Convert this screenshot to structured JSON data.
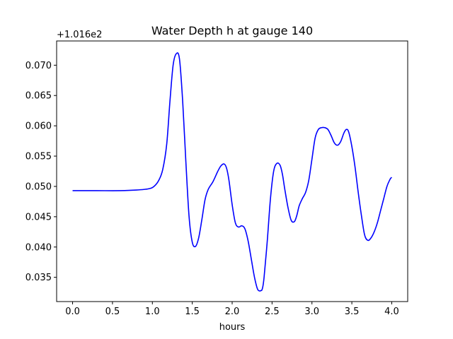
{
  "chart_data": {
    "type": "line",
    "title": "Water Depth h at gauge 140",
    "xlabel": "hours",
    "ylabel": "",
    "y_offset_label": "+1.016e2",
    "xlim": [
      -0.2,
      4.2
    ],
    "ylim": [
      0.031,
      0.074
    ],
    "x_ticks": [
      0.0,
      0.5,
      1.0,
      1.5,
      2.0,
      2.5,
      3.0,
      3.5,
      4.0
    ],
    "x_tick_labels": [
      "0.0",
      "0.5",
      "1.0",
      "1.5",
      "2.0",
      "2.5",
      "3.0",
      "3.5",
      "4.0"
    ],
    "y_ticks": [
      0.035,
      0.04,
      0.045,
      0.05,
      0.055,
      0.06,
      0.065,
      0.07
    ],
    "y_tick_labels": [
      "0.035",
      "0.040",
      "0.045",
      "0.050",
      "0.055",
      "0.060",
      "0.065",
      "0.070"
    ],
    "grid": false,
    "series": [
      {
        "color": "#0000ff",
        "x": [
          0.0,
          0.3,
          0.6,
          0.8,
          0.95,
          1.02,
          1.08,
          1.13,
          1.18,
          1.22,
          1.26,
          1.3,
          1.34,
          1.38,
          1.42,
          1.46,
          1.5,
          1.54,
          1.58,
          1.62,
          1.66,
          1.7,
          1.76,
          1.82,
          1.86,
          1.9,
          1.93,
          1.96,
          2.0,
          2.04,
          2.08,
          2.12,
          2.16,
          2.2,
          2.24,
          2.28,
          2.32,
          2.36,
          2.38,
          2.4,
          2.44,
          2.48,
          2.52,
          2.56,
          2.6,
          2.63,
          2.66,
          2.7,
          2.74,
          2.78,
          2.81,
          2.84,
          2.88,
          2.92,
          2.96,
          3.0,
          3.04,
          3.08,
          3.12,
          3.16,
          3.2,
          3.24,
          3.28,
          3.32,
          3.36,
          3.4,
          3.43,
          3.46,
          3.5,
          3.54,
          3.58,
          3.62,
          3.66,
          3.7,
          3.74,
          3.78,
          3.82,
          3.86,
          3.9,
          3.94,
          3.98,
          4.0
        ],
        "y": [
          0.0493,
          0.0493,
          0.0493,
          0.0494,
          0.0496,
          0.05,
          0.051,
          0.0528,
          0.057,
          0.064,
          0.07,
          0.0719,
          0.071,
          0.064,
          0.054,
          0.045,
          0.0408,
          0.0401,
          0.0415,
          0.0445,
          0.0478,
          0.0495,
          0.0508,
          0.0525,
          0.0534,
          0.0537,
          0.053,
          0.051,
          0.047,
          0.044,
          0.0433,
          0.0435,
          0.043,
          0.041,
          0.038,
          0.035,
          0.033,
          0.0328,
          0.0332,
          0.035,
          0.041,
          0.048,
          0.0525,
          0.0538,
          0.0535,
          0.052,
          0.0495,
          0.0465,
          0.0444,
          0.0442,
          0.0452,
          0.0468,
          0.048,
          0.049,
          0.051,
          0.0545,
          0.058,
          0.0594,
          0.0597,
          0.0597,
          0.0594,
          0.0584,
          0.0572,
          0.0568,
          0.0574,
          0.0588,
          0.0594,
          0.059,
          0.0566,
          0.0532,
          0.049,
          0.0452,
          0.042,
          0.0411,
          0.0415,
          0.0425,
          0.044,
          0.046,
          0.048,
          0.05,
          0.0512,
          0.0515
        ]
      }
    ]
  }
}
